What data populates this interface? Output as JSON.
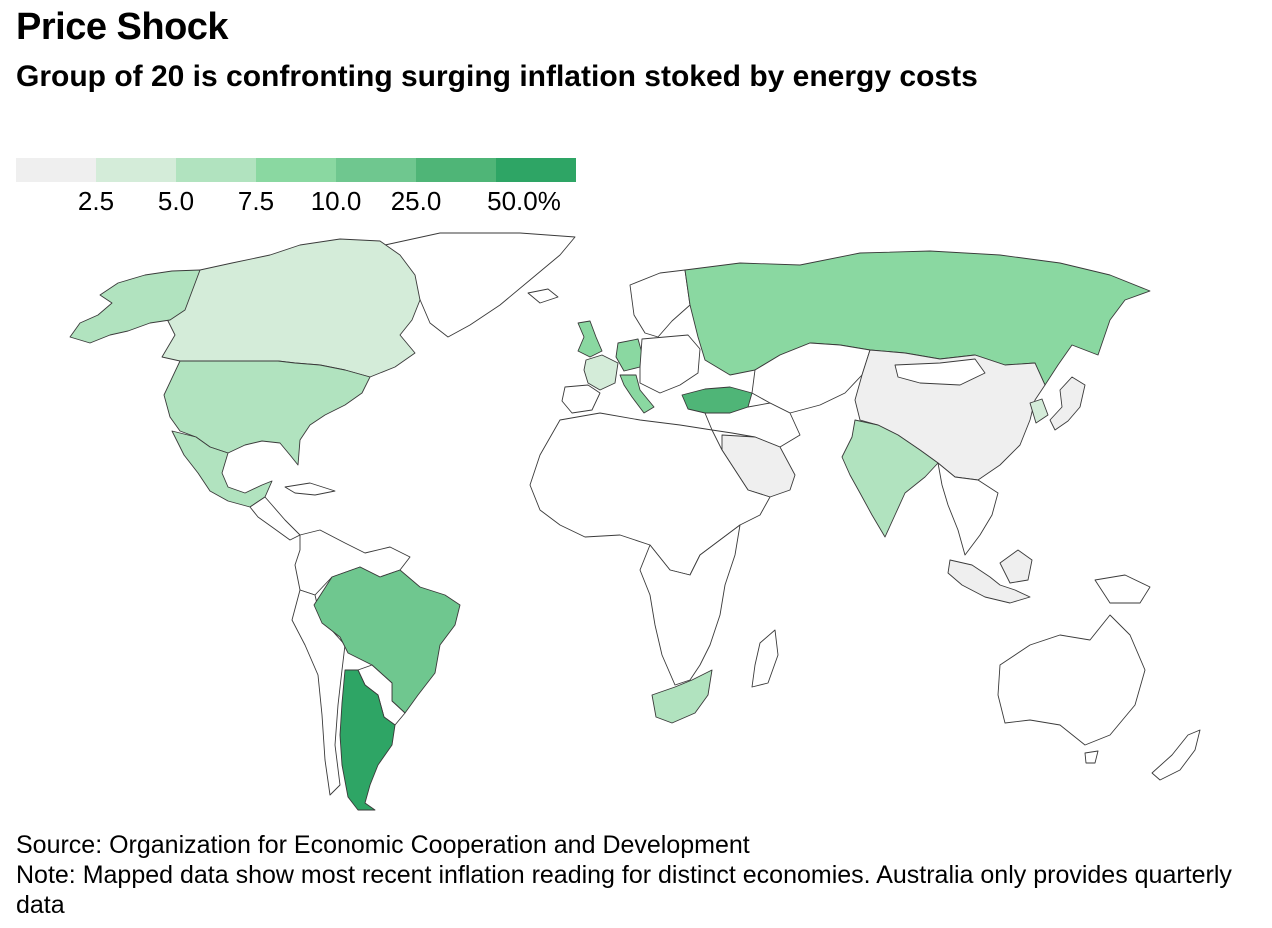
{
  "header": {
    "title": "Price Shock",
    "subtitle": "Group of 20 is confronting surging inflation stoked by energy costs"
  },
  "legend": {
    "colors": [
      "#efefef",
      "#d4ecd9",
      "#b1e3bf",
      "#8ad8a1",
      "#6fc78f",
      "#4fb577",
      "#2ea565"
    ],
    "ticks": [
      "2.5",
      "5.0",
      "7.5",
      "10.0",
      "25.0",
      "50.0%"
    ]
  },
  "map": {
    "no_data_color": "#ffffff",
    "countries": [
      {
        "name": "Canada",
        "bin": 1
      },
      {
        "name": "Alaska (US)",
        "bin": 2
      },
      {
        "name": "United States",
        "bin": 2
      },
      {
        "name": "Mexico",
        "bin": 2
      },
      {
        "name": "Brazil",
        "bin": 4
      },
      {
        "name": "Argentina",
        "bin": 6
      },
      {
        "name": "United Kingdom",
        "bin": 3
      },
      {
        "name": "France",
        "bin": 1
      },
      {
        "name": "Germany",
        "bin": 3
      },
      {
        "name": "Italy",
        "bin": 3
      },
      {
        "name": "Turkey",
        "bin": 5
      },
      {
        "name": "Russia",
        "bin": 3
      },
      {
        "name": "China",
        "bin": 0
      },
      {
        "name": "Japan",
        "bin": 0
      },
      {
        "name": "South Korea",
        "bin": 1
      },
      {
        "name": "India",
        "bin": 2
      },
      {
        "name": "Saudi Arabia",
        "bin": 0
      },
      {
        "name": "Indonesia",
        "bin": 0
      },
      {
        "name": "South Africa",
        "bin": 2
      },
      {
        "name": "Australia",
        "bin": -1
      }
    ]
  },
  "footer": {
    "source": "Source: Organization for Economic Cooperation and Development",
    "note": "Note: Mapped data show most recent inflation reading for distinct economies. Australia only provides quarterly data"
  }
}
